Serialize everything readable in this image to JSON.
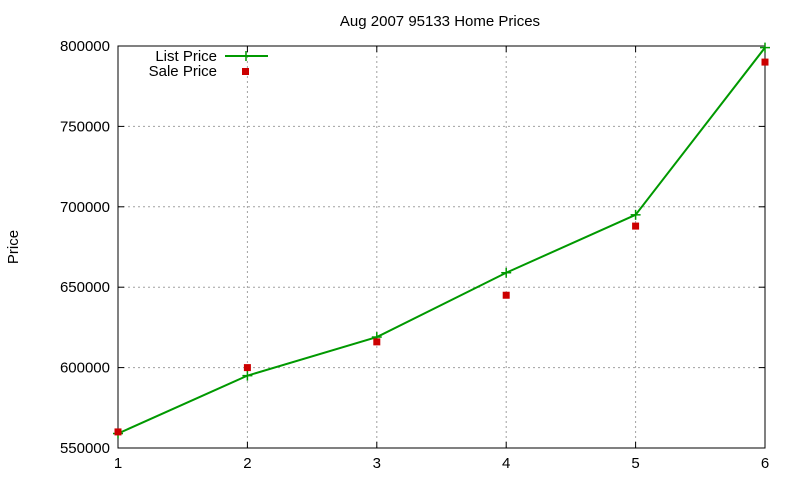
{
  "chart_data": {
    "type": "line",
    "title": "Aug 2007 95133 Home Prices",
    "xlabel": "",
    "ylabel": "Price",
    "x": [
      1,
      2,
      3,
      4,
      5,
      6
    ],
    "xlim": [
      1,
      6
    ],
    "ylim": [
      550000,
      800000
    ],
    "xticks": [
      "1",
      "2",
      "3",
      "4",
      "5",
      "6"
    ],
    "yticks": [
      "550000",
      "600000",
      "650000",
      "700000",
      "750000",
      "800000"
    ],
    "grid": true,
    "legend_position": "top-left",
    "series": [
      {
        "name": "List Price",
        "style": "line-with-plus-markers",
        "color": "#009900",
        "values": [
          559000,
          595000,
          619000,
          659000,
          695000,
          799000
        ]
      },
      {
        "name": "Sale Price",
        "style": "square-markers",
        "color": "#cc0000",
        "values": [
          560000,
          600000,
          616000,
          645000,
          688000,
          790000
        ]
      }
    ]
  }
}
